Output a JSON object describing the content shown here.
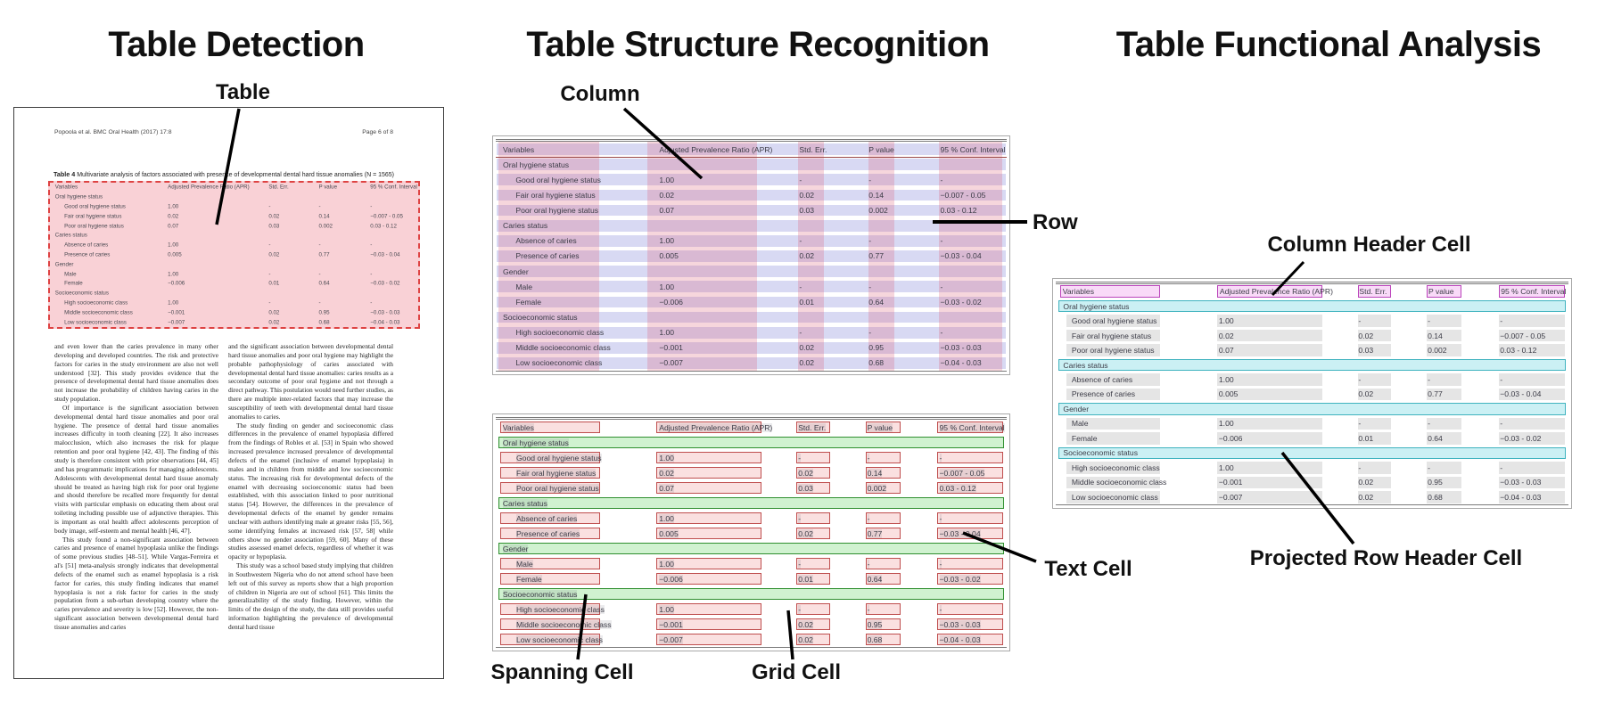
{
  "panels": {
    "detection": {
      "title": "Table Detection"
    },
    "structure": {
      "title": "Table Structure Recognition"
    },
    "functional": {
      "title": "Table Functional Analysis"
    }
  },
  "annotations": {
    "table": "Table",
    "column": "Column",
    "row": "Row",
    "spanning_cell": "Spanning Cell",
    "grid_cell": "Grid Cell",
    "text_cell": "Text Cell",
    "column_header_cell": "Column Header Cell",
    "projected_row_header_cell": "Projected Row Header Cell"
  },
  "document": {
    "header_left": "Popoola et al. BMC Oral Health  (2017) 17:8",
    "header_right": "Page 6 of 8",
    "caption_label": "Table 4",
    "caption_text": "Multivariate analysis of factors associated with presence of developmental dental hard tissue anomalies (N = 1565)",
    "body_col1": [
      {
        "indent": false,
        "text": "and even lower than the caries prevalence in many other developing and developed countries. The risk and protective factors for caries in the study environment are also not well understood [32]. This study provides evidence that the presence of developmental dental hard tissue anomalies does not increase the probability of children having caries in the study population."
      },
      {
        "indent": true,
        "text": "Of importance is the significant association between developmental dental hard tissue anomalies and poor oral hygiene. The presence of dental hard tissue anomalies increases difficulty in tooth cleaning [22]. It also increases malocclusion, which also increases the risk for plaque retention and poor oral hygiene [42, 43]. The finding of this study is therefore consistent with prior observations [44, 45] and has programmatic implications for managing adolescents. Adolescents with developmental dental hard tissue anomaly should be treated as having high risk for poor oral hygiene and should therefore be recalled more frequently for dental visits with particular emphasis on educating them about oral toileting including possible use of adjunctive therapies. This is important as oral health affect adolescents perception of body image, self-esteem and mental health [46, 47]."
      },
      {
        "indent": true,
        "text": "This study found a non-significant association between caries and presence of enamel hypoplasia unlike the findings of some previous studies [48–51]. While Vargas-Ferreira et al's [51] meta-analysis strongly indicates that developmental defects of the enamel such as enamel hypoplasia is a risk factor for caries, this study finding indicates that enamel hypoplasia is not a risk factor for caries in the study population from a sub-urban developing country where the caries prevalence and severity is low [52]. However, the non-significant association between developmental dental hard tissue anomalies and caries"
      }
    ],
    "body_col2": [
      {
        "indent": false,
        "text": "and the significant association between developmental dental hard tissue anomalies and poor oral hygiene may highlight the probable pathophysiology of caries associated with developmental dental hard tissue anomalies: caries results as a secondary outcome of poor oral hygiene and not through a direct pathway. This postulation would need further studies, as there are multiple inter-related factors that may increase the susceptibility of teeth with developmental dental hard tissue anomalies to caries."
      },
      {
        "indent": true,
        "text": "The study finding on gender and socioeconomic class differences in the prevalence of enamel hypoplasia differed from the findings of Robles et al. [53] in Spain who showed increased prevalence increased prevalence of developmental defects of the enamel (inclusive of enamel hypoplasia) in males and in children from middle and low socioeconomic status. The increasing risk for developmental defects of the enamel with decreasing socioeconomic status had been established, with this association linked to poor nutritional status [54]. However, the differences in the prevalence of developmental defects of the enamel by gender remains unclear with authors identifying male at greater risks [55, 56], some identifying females at increased risk [57, 58] while others show no gender association [59, 60]. Many of these studies assessed enamel defects, regardless of whether it was opacity or hypoplasia."
      },
      {
        "indent": true,
        "text": "This study was a school based study implying that children in Southwestern Nigeria who do not attend school have been left out of this survey as reports show that a high proportion of children in Nigeria are out of school [61]. This limits the generalizability of the study finding. However, within the limits of the design of the study, the data still provides useful information highlighting the prevalence of developmental dental hard tissue"
      }
    ]
  },
  "table": {
    "columns": [
      "Variables",
      "Adjusted Prevalence Ratio (APR)",
      "Std. Err.",
      "P value",
      "95 % Conf. Interval"
    ],
    "rows": [
      {
        "type": "section",
        "label": "Oral hygiene status"
      },
      {
        "type": "data",
        "label": "Good oral hygiene status",
        "values": [
          "1.00",
          "-",
          "-",
          "-"
        ]
      },
      {
        "type": "data",
        "label": "Fair oral hygiene status",
        "values": [
          "0.02",
          "0.02",
          "0.14",
          "−0.007 - 0.05"
        ]
      },
      {
        "type": "data",
        "label": "Poor oral hygiene status",
        "values": [
          "0.07",
          "0.03",
          "0.002",
          "0.03 - 0.12"
        ]
      },
      {
        "type": "section",
        "label": "Caries status"
      },
      {
        "type": "data",
        "label": "Absence of caries",
        "values": [
          "1.00",
          "-",
          "-",
          "-"
        ]
      },
      {
        "type": "data",
        "label": "Presence of caries",
        "values": [
          "0.005",
          "0.02",
          "0.77",
          "−0.03 - 0.04"
        ]
      },
      {
        "type": "section",
        "label": "Gender"
      },
      {
        "type": "data",
        "label": "Male",
        "values": [
          "1.00",
          "-",
          "-",
          "-"
        ]
      },
      {
        "type": "data",
        "label": "Female",
        "values": [
          "−0.006",
          "0.01",
          "0.64",
          "−0.03 - 0.02"
        ]
      },
      {
        "type": "section",
        "label": "Socioeconomic status"
      },
      {
        "type": "data",
        "label": "High socioeconomic class",
        "values": [
          "1.00",
          "-",
          "-",
          "-"
        ]
      },
      {
        "type": "data",
        "label": "Middle socioeconomic class",
        "values": [
          "−0.001",
          "0.02",
          "0.95",
          "−0.03 - 0.03"
        ]
      },
      {
        "type": "data",
        "label": "Low socioeconomic class",
        "values": [
          "−0.007",
          "0.02",
          "0.68",
          "−0.04 - 0.03"
        ]
      }
    ]
  },
  "colors": {
    "row_band": "#d8d9f3",
    "column_strip": "#f6d6dc",
    "detection_fill": "#f5cdd2",
    "detection_border": "#de4343",
    "grid_cell_border": "#bf4e4e",
    "spanning_cell_border": "#2f8f2f",
    "column_header_border": "#bb44bb",
    "projected_row_header_border": "#3fb3bf",
    "text_cell_fill": "#e6e6e6",
    "arrow": "#000000"
  }
}
